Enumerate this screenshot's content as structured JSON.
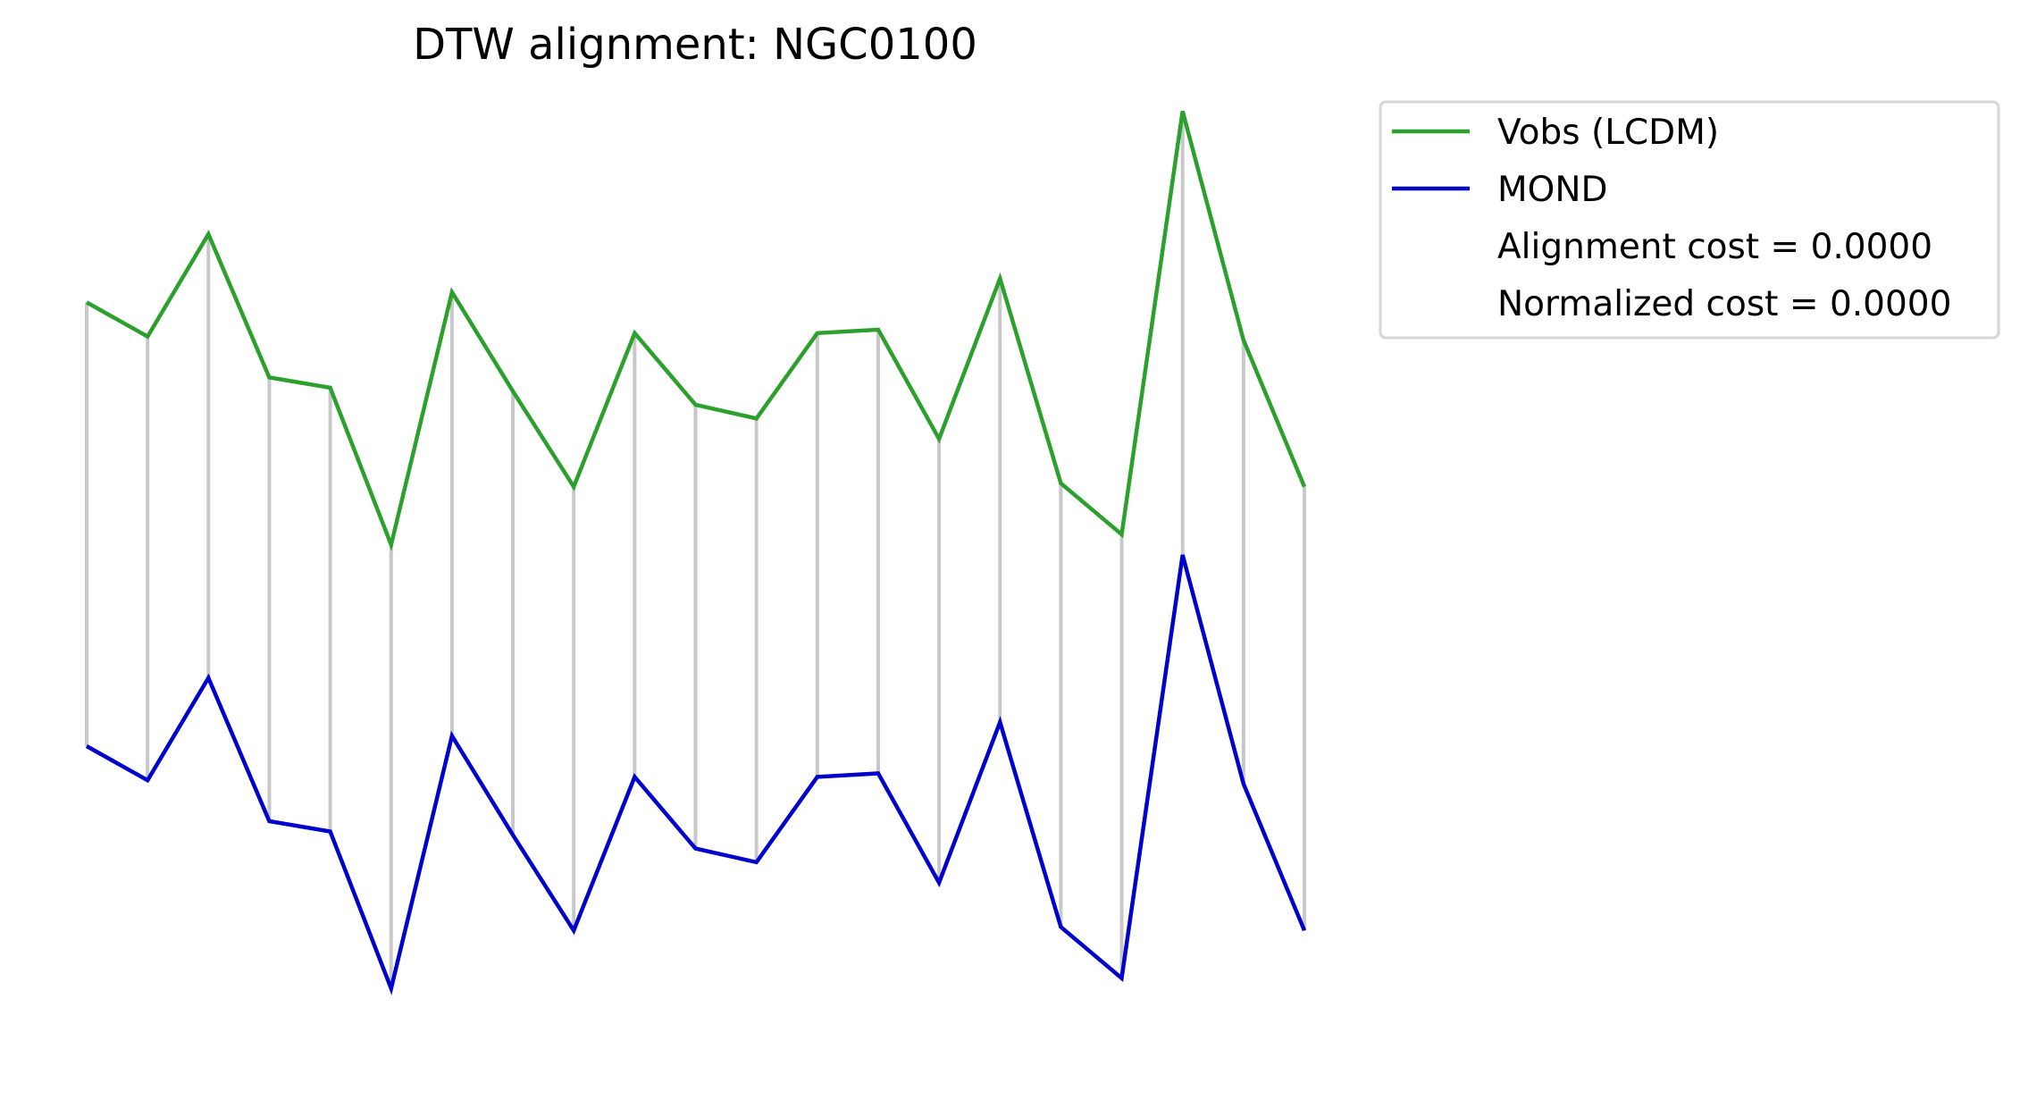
{
  "chart_data": {
    "type": "line",
    "title": "DTW alignment: NGC0100",
    "xlabel": "",
    "ylabel": "",
    "axes_visible": false,
    "grid": false,
    "x": [
      0,
      1,
      2,
      3,
      4,
      5,
      6,
      7,
      8,
      9,
      10,
      11,
      12,
      13,
      14,
      15,
      16,
      17,
      18,
      19,
      20
    ],
    "series": [
      {
        "name": "Vobs (LCDM)",
        "color": "#2ca02c",
        "values": [
          0.41,
          0.31,
          0.61,
          0.19,
          0.16,
          -0.3,
          0.44,
          0.15,
          -0.13,
          0.32,
          0.11,
          0.07,
          0.32,
          0.33,
          0.01,
          0.48,
          -0.12,
          -0.27,
          0.97,
          0.3,
          -0.13
        ]
      },
      {
        "name": "MOND",
        "color": "#0000cc",
        "values": [
          0.41,
          0.31,
          0.61,
          0.19,
          0.16,
          -0.3,
          0.44,
          0.15,
          -0.13,
          0.32,
          0.11,
          0.07,
          0.32,
          0.33,
          0.01,
          0.48,
          -0.12,
          -0.27,
          0.97,
          0.3,
          -0.13
        ]
      }
    ],
    "vertical_offset_between_series": -1.3,
    "alignment_lines_color": "#c8c8c8",
    "legend": {
      "placement": "upper-right-outside",
      "entries": [
        "Vobs (LCDM)",
        "MOND",
        "Alignment cost = 0.0000",
        "Normalized cost = 0.0000"
      ]
    }
  }
}
